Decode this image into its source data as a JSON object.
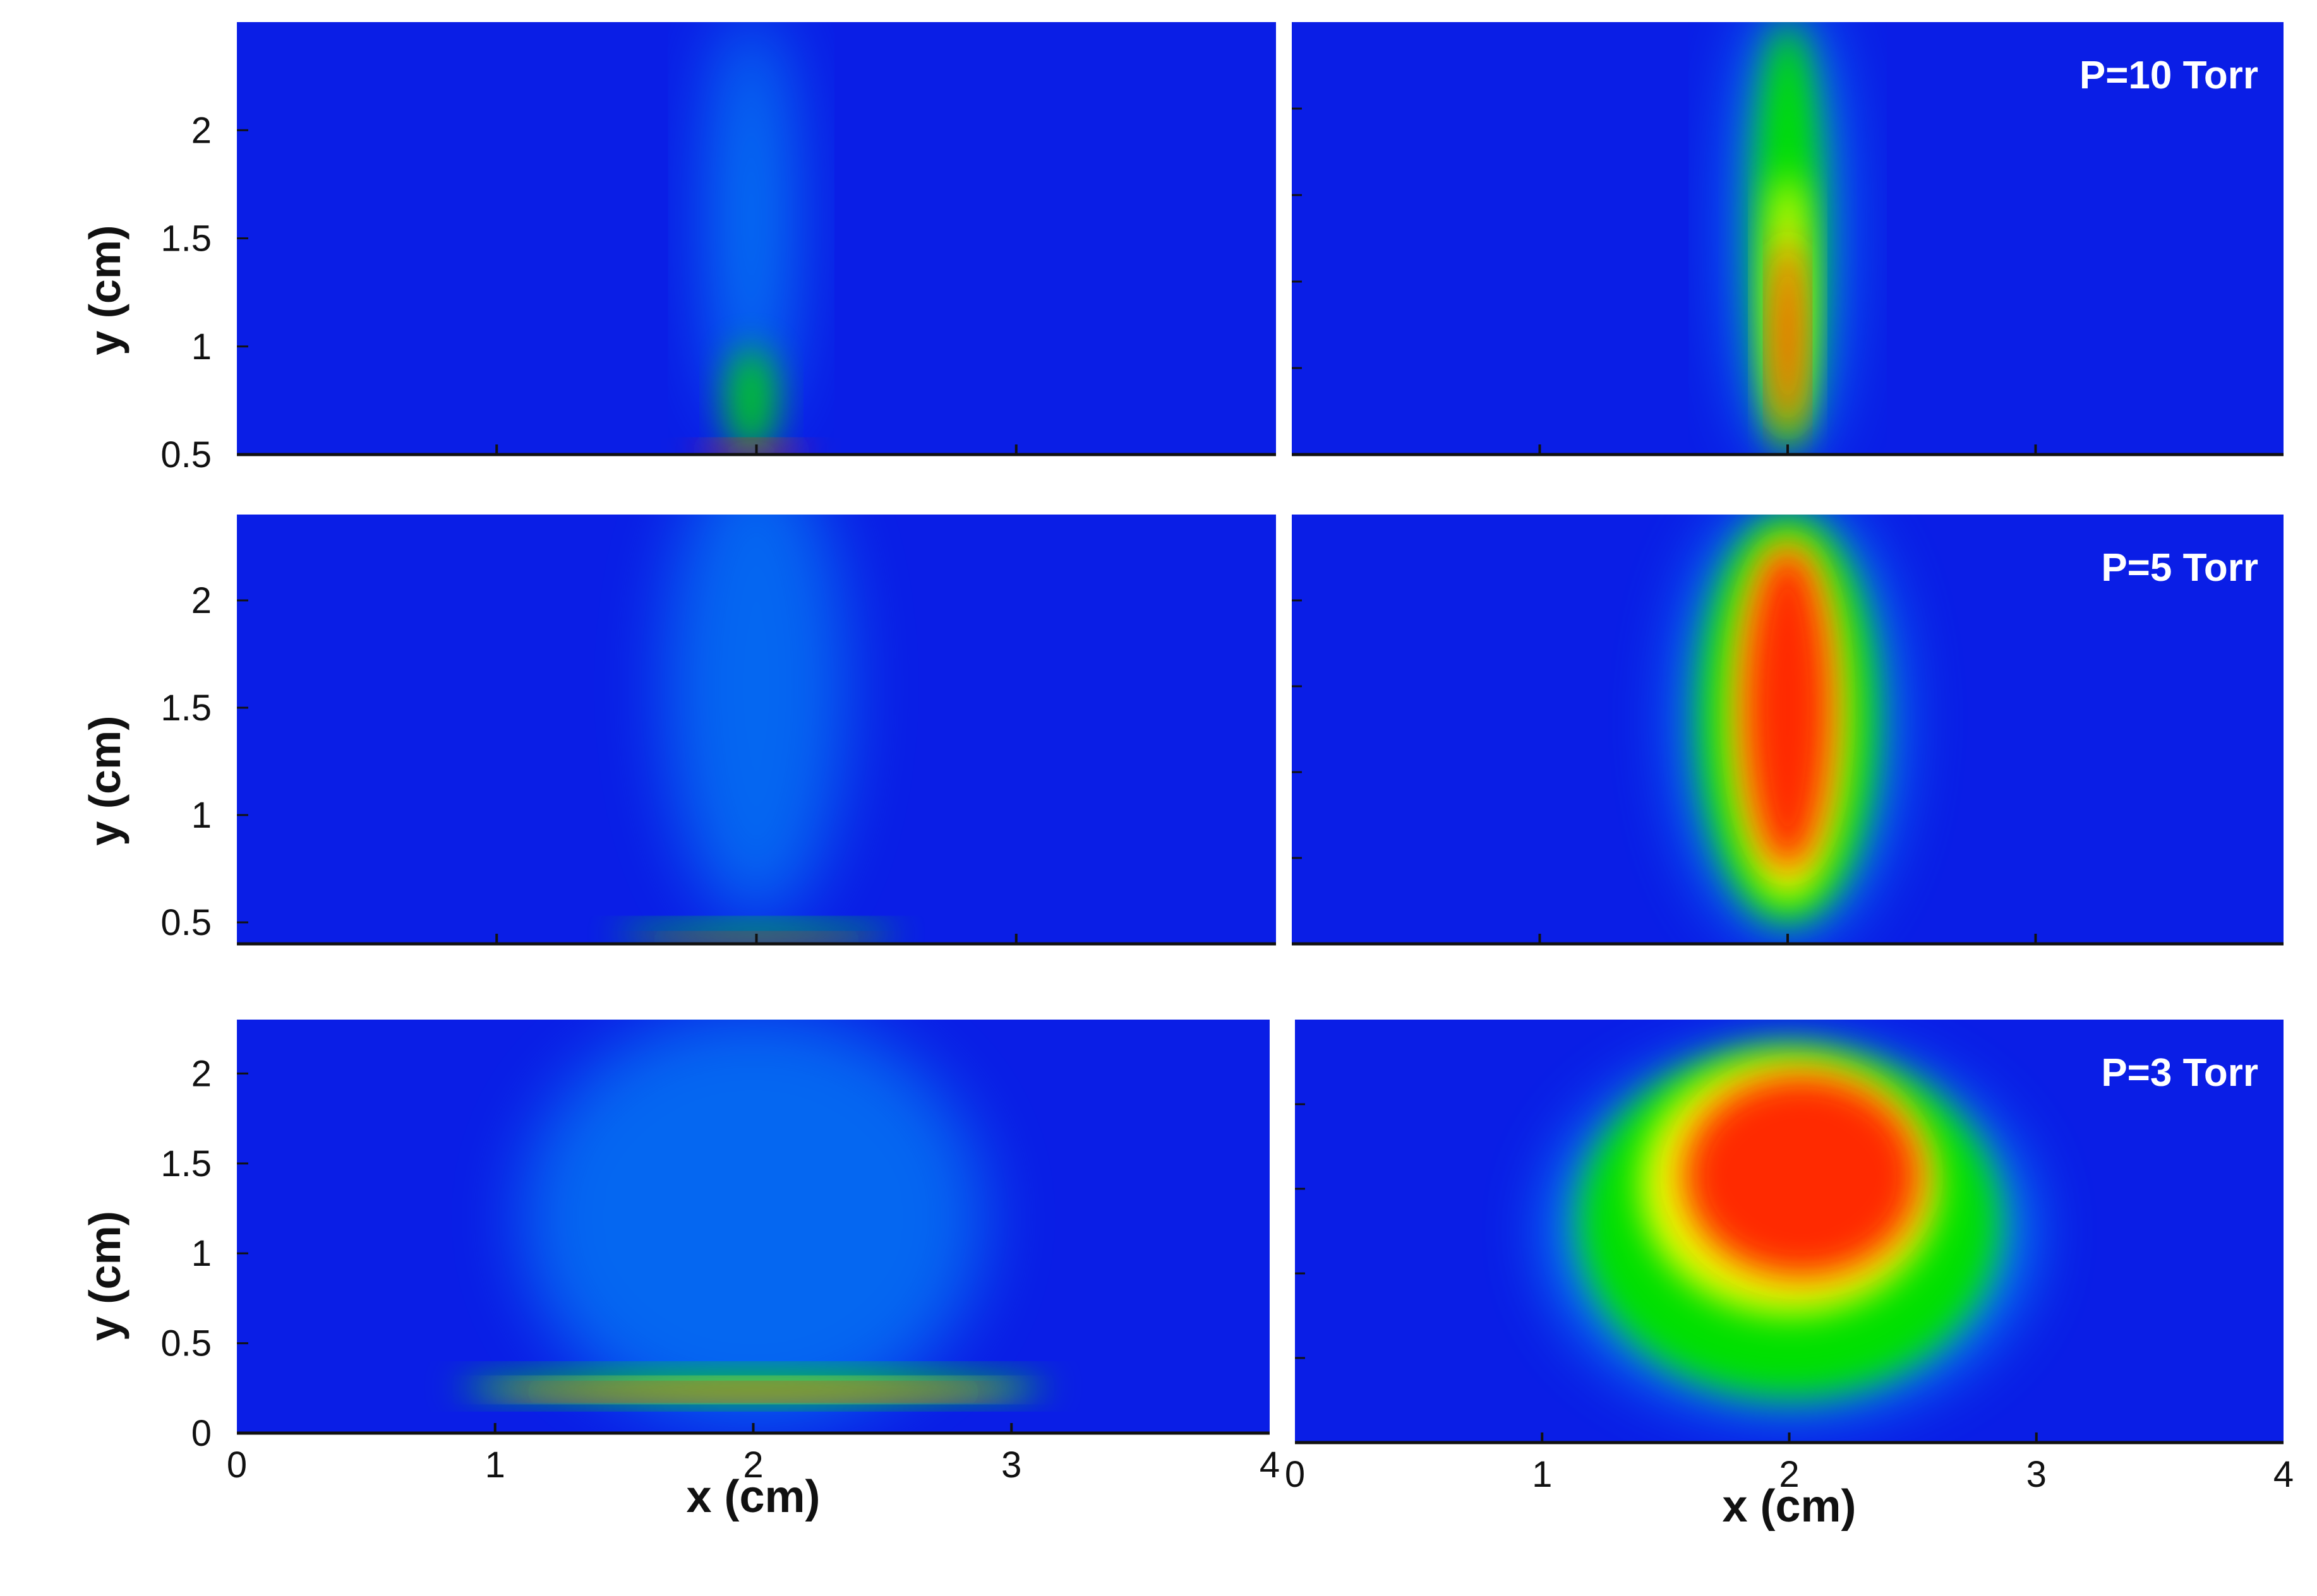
{
  "colors": {
    "background": "#0a1ee6",
    "level1": "#00c0ff",
    "level2": "#00e000",
    "level3": "#f0ff00",
    "level4": "#ff2a00"
  },
  "chart_data": [
    {
      "type": "heatmap",
      "panel": "row1-left",
      "xlim": [
        0,
        4
      ],
      "ylim": [
        0.5,
        2.5
      ],
      "yticks": [
        "0.5",
        "1",
        "1.5",
        "2"
      ],
      "ylabel": "y (cm)",
      "xticks": [],
      "xlabel": "",
      "annotation": "",
      "blobs": [
        {
          "x": 1.98,
          "y": 1.6,
          "wx": 0.16,
          "hy": 0.95,
          "level": 1,
          "opacity": 0.55
        },
        {
          "x": 1.98,
          "y": 0.75,
          "wx": 0.1,
          "hy": 0.25,
          "level": 2,
          "opacity": 0.8
        },
        {
          "x": 1.98,
          "y": 0.52,
          "wx": 0.22,
          "hy": 0.03,
          "level": 4,
          "opacity": 1
        }
      ]
    },
    {
      "type": "heatmap",
      "panel": "row1-right",
      "xlim": [
        0,
        4
      ],
      "ylim": [
        0.5,
        2.5
      ],
      "yticks": [],
      "ylabel": "",
      "xticks": [],
      "xlabel": "",
      "annotation": "P=10 Torr",
      "blobs": [
        {
          "x": 2.0,
          "y": 1.55,
          "wx": 0.2,
          "hy": 1.05,
          "level": 1,
          "opacity": 0.7
        },
        {
          "x": 2.0,
          "y": 1.5,
          "wx": 0.14,
          "hy": 1.0,
          "level": 2,
          "opacity": 1
        },
        {
          "x": 2.0,
          "y": 1.2,
          "wx": 0.08,
          "hy": 0.6,
          "level": 3,
          "opacity": 1
        },
        {
          "x": 2.0,
          "y": 1.05,
          "wx": 0.05,
          "hy": 0.45,
          "level": 4,
          "opacity": 1
        }
      ]
    },
    {
      "type": "heatmap",
      "panel": "row2-left",
      "xlim": [
        0,
        4
      ],
      "ylim": [
        0.4,
        2.4
      ],
      "yticks": [
        "0.5",
        "1",
        "1.5",
        "2"
      ],
      "ylabel": "y (cm)",
      "xticks": [],
      "xlabel": "",
      "annotation": "",
      "blobs": [
        {
          "x": 2.0,
          "y": 1.6,
          "wx": 0.35,
          "hy": 1.1,
          "level": 1,
          "opacity": 0.45
        },
        {
          "x": 2.0,
          "y": 0.45,
          "wx": 0.55,
          "hy": 0.04,
          "level": 2,
          "opacity": 0.9
        },
        {
          "x": 2.0,
          "y": 0.42,
          "wx": 0.45,
          "hy": 0.02,
          "level": 4,
          "opacity": 1
        }
      ]
    },
    {
      "type": "heatmap",
      "panel": "row2-right",
      "xlim": [
        0,
        4
      ],
      "ylim": [
        0.4,
        2.4
      ],
      "yticks": [],
      "ylabel": "",
      "xticks": [],
      "xlabel": "",
      "annotation": "P=5 Torr",
      "blobs": [
        {
          "x": 2.0,
          "y": 1.45,
          "wx": 0.42,
          "hy": 1.0,
          "level": 1,
          "opacity": 0.75
        },
        {
          "x": 2.0,
          "y": 1.45,
          "wx": 0.36,
          "hy": 0.95,
          "level": 2,
          "opacity": 1
        },
        {
          "x": 2.0,
          "y": 1.45,
          "wx": 0.24,
          "hy": 0.85,
          "level": 3,
          "opacity": 1
        },
        {
          "x": 2.0,
          "y": 1.5,
          "wx": 0.18,
          "hy": 0.75,
          "level": 4,
          "opacity": 1
        }
      ]
    },
    {
      "type": "heatmap",
      "panel": "row3-left",
      "xlim": [
        0,
        4
      ],
      "ylim": [
        0,
        2.3
      ],
      "yticks": [
        "0",
        "0.5",
        "1",
        "1.5",
        "2"
      ],
      "ylabel": "y (cm)",
      "xticks": [
        "0",
        "1",
        "2",
        "3",
        "4"
      ],
      "xlabel": "x (cm)",
      "annotation": "",
      "blobs": [
        {
          "x": 2.0,
          "y": 1.2,
          "wx": 0.9,
          "hy": 1.15,
          "level": 1,
          "opacity": 0.45
        },
        {
          "x": 2.0,
          "y": 0.26,
          "wx": 1.15,
          "hy": 0.07,
          "level": 2,
          "opacity": 1
        },
        {
          "x": 2.0,
          "y": 0.24,
          "wx": 1.05,
          "hy": 0.04,
          "level": 3,
          "opacity": 1
        },
        {
          "x": 2.0,
          "y": 0.23,
          "wx": 0.95,
          "hy": 0.03,
          "level": 4,
          "opacity": 1
        }
      ]
    },
    {
      "type": "heatmap",
      "panel": "row3-right",
      "xlim": [
        0,
        4
      ],
      "ylim": [
        0,
        2.3
      ],
      "yticks": [],
      "ylabel": "",
      "xticks": [
        "0",
        "1",
        "2",
        "3",
        "4"
      ],
      "xlabel": "x (cm)",
      "annotation": "P=3 Torr",
      "blobs": [
        {
          "x": 2.0,
          "y": 1.15,
          "wx": 0.95,
          "hy": 0.95,
          "level": 1,
          "opacity": 0.8
        },
        {
          "x": 2.0,
          "y": 1.2,
          "wx": 0.85,
          "hy": 0.95,
          "level": 2,
          "opacity": 1
        },
        {
          "x": 2.0,
          "y": 1.4,
          "wx": 0.6,
          "hy": 0.7,
          "level": 3,
          "opacity": 1
        },
        {
          "x": 2.05,
          "y": 1.45,
          "wx": 0.48,
          "hy": 0.55,
          "level": 4,
          "opacity": 1
        }
      ]
    }
  ]
}
